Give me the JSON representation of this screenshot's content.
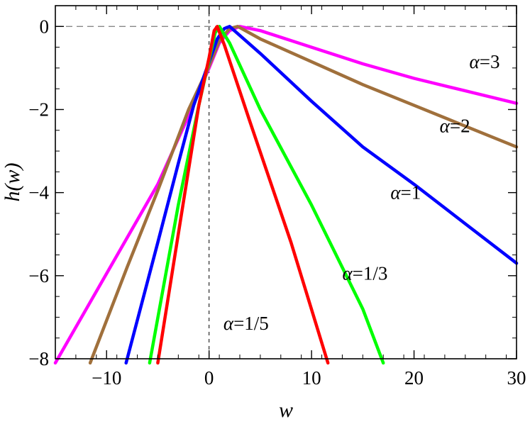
{
  "chart_data": {
    "type": "line",
    "xlabel": "w",
    "ylabel": "h(w)",
    "xlim": [
      -15,
      30
    ],
    "ylim": [
      -8,
      0.5
    ],
    "xticks": [
      -10,
      0,
      10,
      20,
      30
    ],
    "xtick_labels": [
      "−10",
      "0",
      "10",
      "20",
      "30"
    ],
    "yticks": [
      0,
      -2,
      -4,
      -6,
      -8
    ],
    "ytick_labels": [
      "0",
      "−2",
      "−4",
      "−6",
      "−8"
    ],
    "reference_lines": {
      "y": 0,
      "x": 0,
      "style": "dashed"
    },
    "series": [
      {
        "name": "α=3",
        "alpha": 3,
        "color": "#ff00ff",
        "label_at": {
          "x": 25.4,
          "y": -1.0
        },
        "points": [
          [
            -15,
            -8.1
          ],
          [
            -10,
            -5.95
          ],
          [
            -5,
            -3.8
          ],
          [
            -2,
            -2.15
          ],
          [
            0,
            -1.0
          ],
          [
            1,
            -0.4
          ],
          [
            2,
            -0.1
          ],
          [
            3,
            0
          ],
          [
            5,
            -0.1
          ],
          [
            10,
            -0.5
          ],
          [
            15,
            -0.9
          ],
          [
            20,
            -1.25
          ],
          [
            25,
            -1.55
          ],
          [
            30,
            -1.85
          ]
        ]
      },
      {
        "name": "α=2",
        "alpha": 2,
        "color": "#a0703c",
        "label_at": {
          "x": 22.5,
          "y": -2.55
        },
        "points": [
          [
            -11.6,
            -8.1
          ],
          [
            -8,
            -5.8
          ],
          [
            -5,
            -3.95
          ],
          [
            -2,
            -2.0
          ],
          [
            0,
            -0.95
          ],
          [
            1,
            -0.35
          ],
          [
            2,
            -0.05
          ],
          [
            2.8,
            0
          ],
          [
            5,
            -0.3
          ],
          [
            10,
            -0.85
          ],
          [
            15,
            -1.4
          ],
          [
            20,
            -1.9
          ],
          [
            25,
            -2.4
          ],
          [
            30,
            -2.9
          ]
        ]
      },
      {
        "name": "α=1",
        "alpha": 1,
        "color": "#0000ff",
        "label_at": {
          "x": 17.7,
          "y": -4.15
        },
        "points": [
          [
            -8.1,
            -8.1
          ],
          [
            -5,
            -5.2
          ],
          [
            -3,
            -3.3
          ],
          [
            -1.5,
            -1.9
          ],
          [
            0,
            -0.85
          ],
          [
            0.8,
            -0.3
          ],
          [
            1.5,
            -0.05
          ],
          [
            2,
            0
          ],
          [
            5,
            -0.65
          ],
          [
            10,
            -1.8
          ],
          [
            15,
            -2.9
          ],
          [
            20,
            -3.8
          ],
          [
            25,
            -4.75
          ],
          [
            30,
            -5.7
          ]
        ]
      },
      {
        "name": "α=1/3",
        "alpha": 0.3333,
        "color": "#00ff00",
        "label_at": {
          "x": 13,
          "y": -6.1
        },
        "points": [
          [
            -5.8,
            -8.1
          ],
          [
            -3,
            -4.3
          ],
          [
            -1,
            -1.9
          ],
          [
            0,
            -0.8
          ],
          [
            0.6,
            -0.15
          ],
          [
            1,
            0
          ],
          [
            2,
            -0.4
          ],
          [
            5,
            -2.0
          ],
          [
            10,
            -4.3
          ],
          [
            15,
            -6.8
          ],
          [
            17,
            -8.1
          ]
        ]
      },
      {
        "name": "α=1/5",
        "alpha": 0.2,
        "color": "#ff0000",
        "label_at": {
          "x": 1.4,
          "y": -7.3
        },
        "points": [
          [
            -5.0,
            -8.1
          ],
          [
            -3,
            -5.0
          ],
          [
            -1,
            -1.9
          ],
          [
            0,
            -0.75
          ],
          [
            0.5,
            -0.1
          ],
          [
            0.8,
            0
          ],
          [
            1.5,
            -0.45
          ],
          [
            4,
            -2.3
          ],
          [
            8,
            -5.2
          ],
          [
            11.6,
            -8.1
          ]
        ]
      }
    ]
  }
}
